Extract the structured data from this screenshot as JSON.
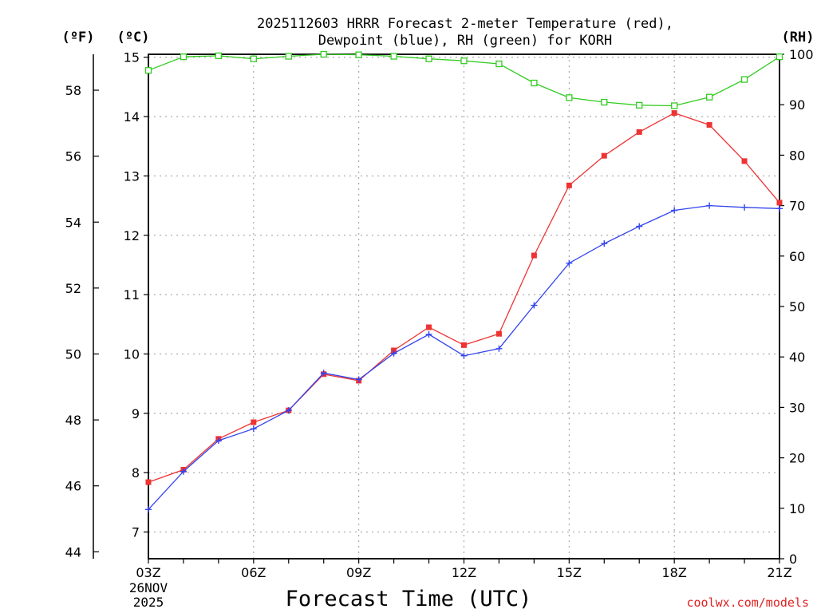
{
  "chart_data": {
    "type": "line",
    "title_line1": "2025112603 HRRR Forecast 2-meter Temperature (red),",
    "title_line2": "Dewpoint (blue), RH (green) for KORH",
    "xlabel": "Forecast Time (UTC)",
    "x_hours": [
      3,
      4,
      5,
      6,
      7,
      8,
      9,
      10,
      11,
      12,
      13,
      14,
      15,
      16,
      17,
      18,
      19,
      20,
      21
    ],
    "x_ticks": [
      {
        "hour": 3,
        "label": "03Z"
      },
      {
        "hour": 6,
        "label": "06Z"
      },
      {
        "hour": 9,
        "label": "09Z"
      },
      {
        "hour": 12,
        "label": "12Z"
      },
      {
        "hour": 15,
        "label": "15Z"
      },
      {
        "hour": 18,
        "label": "18Z"
      },
      {
        "hour": 21,
        "label": "21Z"
      }
    ],
    "x_date_line1": "26NOV",
    "x_date_line2": "2025",
    "x_range": [
      3,
      21
    ],
    "y_celsius_range": [
      6.55,
      15.05
    ],
    "y_celsius_ticks": [
      7,
      8,
      9,
      10,
      11,
      12,
      13,
      14,
      15
    ],
    "y_fahrenheit_ticks": [
      44,
      46,
      48,
      50,
      52,
      54,
      56,
      58
    ],
    "y_rh_range": [
      0,
      100
    ],
    "y_rh_ticks": [
      0,
      10,
      20,
      30,
      40,
      50,
      60,
      70,
      80,
      90,
      100
    ],
    "axis_unit_f": "(ºF)",
    "axis_unit_c": "(ºC)",
    "axis_unit_rh": "(RH)",
    "grid": true,
    "series": [
      {
        "name": "Temperature",
        "unit": "C",
        "color": "#ee3333",
        "marker": "filled-square",
        "values": [
          7.84,
          8.05,
          8.57,
          8.85,
          9.05,
          9.66,
          9.55,
          10.06,
          10.45,
          10.15,
          10.34,
          11.66,
          12.84,
          13.34,
          13.74,
          14.06,
          13.86,
          13.25,
          12.55
        ]
      },
      {
        "name": "Dewpoint",
        "unit": "C",
        "color": "#3344ee",
        "marker": "plus",
        "values": [
          7.38,
          8.02,
          8.54,
          8.74,
          9.05,
          9.68,
          9.57,
          10.01,
          10.33,
          9.97,
          10.09,
          10.82,
          11.53,
          11.86,
          12.15,
          12.42,
          12.5,
          12.47,
          12.45
        ]
      },
      {
        "name": "RH",
        "unit": "%",
        "color": "#33cc22",
        "marker": "open-square",
        "values": [
          96.8,
          99.5,
          99.7,
          99.1,
          99.6,
          100.0,
          99.9,
          99.6,
          99.1,
          98.7,
          98.1,
          94.3,
          91.4,
          90.5,
          89.9,
          89.8,
          91.5,
          95.0,
          99.5
        ]
      }
    ],
    "credit": "coolwx.com/models"
  }
}
